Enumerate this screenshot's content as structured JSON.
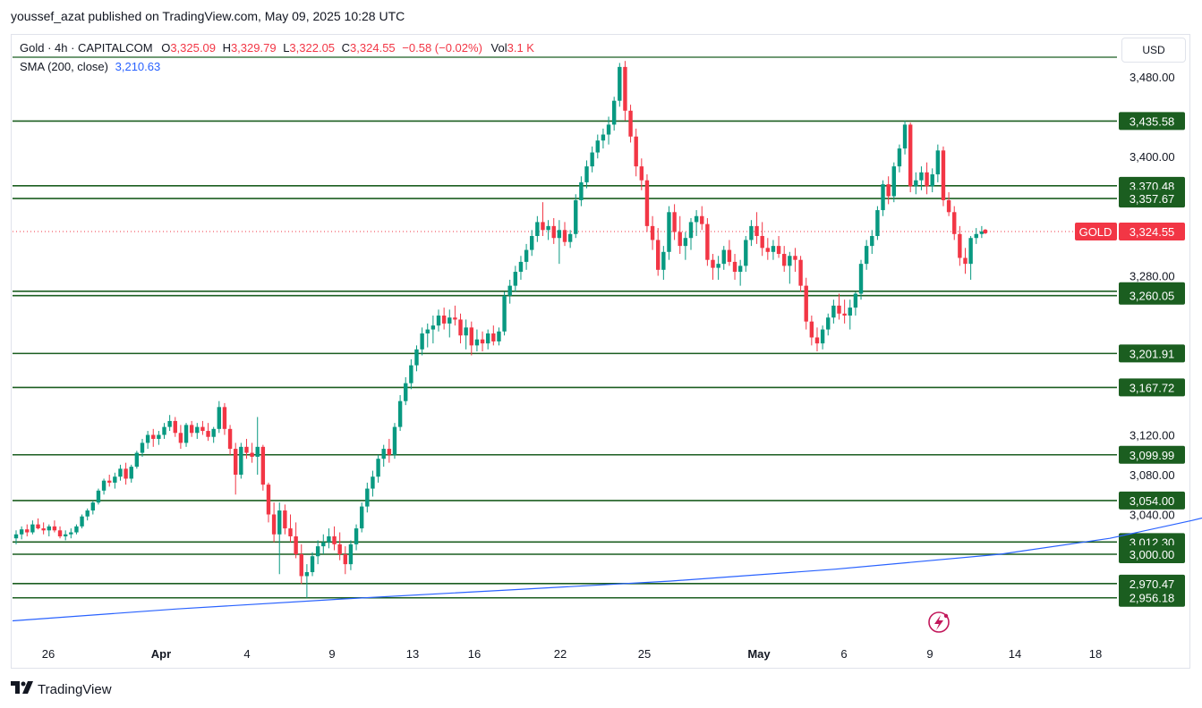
{
  "header": {
    "published": "youssef_azat published on TradingView.com, May 09, 2025 10:28 UTC"
  },
  "legend": {
    "symbol": "Gold · 4h · CAPITALCOM",
    "o_label": "O",
    "o_value": "3,325.09",
    "h_label": "H",
    "h_value": "3,329.79",
    "l_label": "L",
    "l_value": "3,322.05",
    "c_label": "C",
    "c_value": "3,324.55",
    "change": "−0.58 (−0.02%)",
    "vol_label": "Vol",
    "vol_value": "3.1 K",
    "sma_label": "SMA (200, close)",
    "sma_value": "3,210.63"
  },
  "currency_button": "USD",
  "footer": {
    "brand": "TradingView"
  },
  "colors": {
    "up": "#089981",
    "down": "#f23645",
    "sma": "#2962ff",
    "level_line": "#1b5e20",
    "level_tag": "#1b5e20",
    "price_tag": "#f23645"
  },
  "chart_data": {
    "type": "candlestick",
    "symbol": "Gold",
    "timeframe": "4h",
    "y_ticks": [
      "3,480.00",
      "3,400.00",
      "3,280.00",
      "3,120.00",
      "3,080.00",
      "3,040.00"
    ],
    "y_tick_values": [
      3480,
      3400,
      3280,
      3120,
      3080,
      3040
    ],
    "x_ticks": [
      "26",
      "Apr",
      "4",
      "9",
      "13",
      "16",
      "22",
      "25",
      "May",
      "6",
      "9",
      "14",
      "18"
    ],
    "horizontal_levels": [
      {
        "label": "3,435.58",
        "value": 3435.58
      },
      {
        "label": "3,370.48",
        "value": 3370.48
      },
      {
        "label": "3,357.67",
        "value": 3357.67
      },
      {
        "label": "3,264.44",
        "value": 3264.44
      },
      {
        "label": "3,260.05",
        "value": 3260.05
      },
      {
        "label": "3,201.91",
        "value": 3201.91
      },
      {
        "label": "3,167.72",
        "value": 3167.72
      },
      {
        "label": "3,099.99",
        "value": 3099.99
      },
      {
        "label": "3,054.00",
        "value": 3054.0
      },
      {
        "label": "3,012.30",
        "value": 3012.3
      },
      {
        "label": "3,000.00",
        "value": 3000.0
      },
      {
        "label": "2,970.47",
        "value": 2970.47
      },
      {
        "label": "2,956.18",
        "value": 2956.18
      }
    ],
    "last_price": {
      "name": "GOLD",
      "label": "3,324.55",
      "value": 3324.55
    },
    "sma_200": [
      [
        0,
        2933
      ],
      [
        30,
        2945
      ],
      [
        60,
        2955
      ],
      [
        90,
        2964
      ],
      [
        120,
        2973
      ],
      [
        150,
        2985
      ],
      [
        180,
        3000
      ],
      [
        200,
        3016
      ],
      [
        215,
        3034
      ],
      [
        230,
        3054
      ],
      [
        245,
        3073
      ],
      [
        260,
        3093
      ],
      [
        275,
        3110
      ],
      [
        290,
        3125
      ],
      [
        305,
        3138
      ],
      [
        320,
        3150
      ],
      [
        340,
        3162
      ],
      [
        360,
        3172
      ],
      [
        380,
        3183
      ],
      [
        396,
        3193
      ],
      [
        410,
        3203
      ],
      [
        415,
        3210
      ]
    ],
    "candles": [
      [
        3016,
        3024,
        3010,
        3020
      ],
      [
        3020,
        3028,
        3015,
        3025
      ],
      [
        3025,
        3030,
        3018,
        3022
      ],
      [
        3022,
        3034,
        3020,
        3030
      ],
      [
        3030,
        3036,
        3025,
        3026
      ],
      [
        3026,
        3032,
        3020,
        3024
      ],
      [
        3024,
        3030,
        3018,
        3028
      ],
      [
        3028,
        3034,
        3022,
        3024
      ],
      [
        3024,
        3028,
        3016,
        3018
      ],
      [
        3018,
        3024,
        3014,
        3020
      ],
      [
        3020,
        3026,
        3016,
        3022
      ],
      [
        3022,
        3030,
        3020,
        3028
      ],
      [
        3028,
        3040,
        3026,
        3038
      ],
      [
        3038,
        3046,
        3034,
        3044
      ],
      [
        3044,
        3054,
        3040,
        3052
      ],
      [
        3052,
        3066,
        3050,
        3064
      ],
      [
        3064,
        3076,
        3060,
        3074
      ],
      [
        3074,
        3080,
        3068,
        3072
      ],
      [
        3072,
        3082,
        3066,
        3078
      ],
      [
        3078,
        3090,
        3074,
        3086
      ],
      [
        3086,
        3092,
        3070,
        3076
      ],
      [
        3076,
        3090,
        3072,
        3088
      ],
      [
        3088,
        3104,
        3086,
        3102
      ],
      [
        3102,
        3116,
        3098,
        3112
      ],
      [
        3112,
        3124,
        3106,
        3120
      ],
      [
        3120,
        3126,
        3108,
        3116
      ],
      [
        3116,
        3124,
        3110,
        3120
      ],
      [
        3120,
        3132,
        3116,
        3128
      ],
      [
        3128,
        3140,
        3124,
        3134
      ],
      [
        3134,
        3138,
        3118,
        3122
      ],
      [
        3122,
        3130,
        3106,
        3112
      ],
      [
        3112,
        3132,
        3108,
        3130
      ],
      [
        3130,
        3134,
        3118,
        3122
      ],
      [
        3122,
        3132,
        3116,
        3128
      ],
      [
        3128,
        3134,
        3120,
        3124
      ],
      [
        3124,
        3132,
        3114,
        3118
      ],
      [
        3118,
        3128,
        3112,
        3126
      ],
      [
        3126,
        3154,
        3122,
        3148
      ],
      [
        3148,
        3152,
        3120,
        3126
      ],
      [
        3126,
        3130,
        3100,
        3106
      ],
      [
        3106,
        3112,
        3060,
        3080
      ],
      [
        3080,
        3112,
        3076,
        3108
      ],
      [
        3108,
        3116,
        3096,
        3102
      ],
      [
        3102,
        3112,
        3092,
        3098
      ],
      [
        3098,
        3138,
        3080,
        3108
      ],
      [
        3108,
        3110,
        3064,
        3070
      ],
      [
        3070,
        3072,
        3032,
        3040
      ],
      [
        3040,
        3052,
        3012,
        3020
      ],
      [
        3020,
        3052,
        2980,
        3044
      ],
      [
        3044,
        3050,
        3020,
        3026
      ],
      [
        3026,
        3040,
        3012,
        3018
      ],
      [
        3018,
        3032,
        2996,
        3000
      ],
      [
        3000,
        3010,
        2970,
        2978
      ],
      [
        2978,
        2990,
        2956,
        2982
      ],
      [
        2982,
        3002,
        2978,
        2998
      ],
      [
        2998,
        3014,
        2990,
        3008
      ],
      [
        3008,
        3020,
        3000,
        3012
      ],
      [
        3012,
        3026,
        3006,
        3018
      ],
      [
        3018,
        3028,
        3004,
        3010
      ],
      [
        3010,
        3022,
        2994,
        3000
      ],
      [
        3000,
        3008,
        2980,
        2990
      ],
      [
        2990,
        3014,
        2984,
        3010
      ],
      [
        3010,
        3030,
        3004,
        3026
      ],
      [
        3026,
        3052,
        3022,
        3048
      ],
      [
        3048,
        3072,
        3042,
        3066
      ],
      [
        3066,
        3084,
        3058,
        3078
      ],
      [
        3078,
        3100,
        3072,
        3096
      ],
      [
        3096,
        3110,
        3088,
        3106
      ],
      [
        3106,
        3116,
        3092,
        3100
      ],
      [
        3100,
        3132,
        3096,
        3128
      ],
      [
        3128,
        3160,
        3124,
        3154
      ],
      [
        3154,
        3178,
        3150,
        3172
      ],
      [
        3172,
        3196,
        3166,
        3190
      ],
      [
        3190,
        3210,
        3184,
        3206
      ],
      [
        3206,
        3228,
        3200,
        3222
      ],
      [
        3222,
        3232,
        3208,
        3226
      ],
      [
        3226,
        3240,
        3212,
        3230
      ],
      [
        3230,
        3246,
        3224,
        3240
      ],
      [
        3240,
        3248,
        3226,
        3232
      ],
      [
        3232,
        3246,
        3218,
        3238
      ],
      [
        3238,
        3250,
        3230,
        3236
      ],
      [
        3236,
        3242,
        3212,
        3220
      ],
      [
        3220,
        3236,
        3206,
        3228
      ],
      [
        3228,
        3234,
        3200,
        3210
      ],
      [
        3210,
        3226,
        3204,
        3216
      ],
      [
        3216,
        3224,
        3204,
        3212
      ],
      [
        3212,
        3226,
        3206,
        3222
      ],
      [
        3222,
        3230,
        3210,
        3214
      ],
      [
        3214,
        3228,
        3210,
        3224
      ],
      [
        3224,
        3264,
        3220,
        3260
      ],
      [
        3260,
        3276,
        3252,
        3270
      ],
      [
        3270,
        3290,
        3264,
        3284
      ],
      [
        3284,
        3300,
        3276,
        3294
      ],
      [
        3294,
        3312,
        3286,
        3306
      ],
      [
        3306,
        3326,
        3300,
        3320
      ],
      [
        3320,
        3340,
        3314,
        3334
      ],
      [
        3334,
        3354,
        3320,
        3326
      ],
      [
        3326,
        3336,
        3316,
        3330
      ],
      [
        3330,
        3338,
        3312,
        3318
      ],
      [
        3318,
        3336,
        3292,
        3326
      ],
      [
        3326,
        3334,
        3310,
        3314
      ],
      [
        3314,
        3326,
        3308,
        3322
      ],
      [
        3322,
        3362,
        3318,
        3356
      ],
      [
        3356,
        3380,
        3350,
        3374
      ],
      [
        3374,
        3396,
        3368,
        3390
      ],
      [
        3390,
        3410,
        3384,
        3404
      ],
      [
        3404,
        3422,
        3398,
        3416
      ],
      [
        3416,
        3428,
        3408,
        3422
      ],
      [
        3422,
        3440,
        3412,
        3432
      ],
      [
        3432,
        3460,
        3426,
        3456
      ],
      [
        3456,
        3494,
        3450,
        3490
      ],
      [
        3490,
        3496,
        3436,
        3446
      ],
      [
        3446,
        3452,
        3414,
        3420
      ],
      [
        3420,
        3428,
        3380,
        3390
      ],
      [
        3390,
        3398,
        3366,
        3376
      ],
      [
        3376,
        3382,
        3324,
        3330
      ],
      [
        3330,
        3340,
        3306,
        3316
      ],
      [
        3316,
        3328,
        3280,
        3286
      ],
      [
        3286,
        3310,
        3276,
        3304
      ],
      [
        3304,
        3350,
        3296,
        3344
      ],
      [
        3344,
        3352,
        3316,
        3324
      ],
      [
        3324,
        3340,
        3302,
        3310
      ],
      [
        3310,
        3324,
        3296,
        3318
      ],
      [
        3318,
        3338,
        3306,
        3334
      ],
      [
        3334,
        3346,
        3320,
        3340
      ],
      [
        3340,
        3350,
        3326,
        3332
      ],
      [
        3332,
        3338,
        3290,
        3296
      ],
      [
        3296,
        3302,
        3276,
        3288
      ],
      [
        3288,
        3300,
        3276,
        3292
      ],
      [
        3292,
        3310,
        3286,
        3306
      ],
      [
        3306,
        3316,
        3290,
        3294
      ],
      [
        3294,
        3302,
        3276,
        3284
      ],
      [
        3284,
        3296,
        3270,
        3290
      ],
      [
        3290,
        3320,
        3284,
        3316
      ],
      [
        3316,
        3336,
        3310,
        3330
      ],
      [
        3330,
        3344,
        3312,
        3320
      ],
      [
        3320,
        3334,
        3300,
        3308
      ],
      [
        3308,
        3318,
        3296,
        3304
      ],
      [
        3304,
        3316,
        3296,
        3310
      ],
      [
        3310,
        3320,
        3298,
        3302
      ],
      [
        3302,
        3310,
        3284,
        3290
      ],
      [
        3290,
        3304,
        3272,
        3300
      ],
      [
        3300,
        3308,
        3284,
        3296
      ],
      [
        3296,
        3300,
        3264,
        3270
      ],
      [
        3270,
        3278,
        3226,
        3234
      ],
      [
        3234,
        3240,
        3210,
        3218
      ],
      [
        3218,
        3228,
        3204,
        3212
      ],
      [
        3212,
        3230,
        3206,
        3226
      ],
      [
        3226,
        3242,
        3220,
        3238
      ],
      [
        3238,
        3256,
        3232,
        3250
      ],
      [
        3250,
        3262,
        3236,
        3242
      ],
      [
        3242,
        3256,
        3232,
        3240
      ],
      [
        3240,
        3256,
        3226,
        3248
      ],
      [
        3248,
        3264,
        3240,
        3262
      ],
      [
        3262,
        3296,
        3256,
        3292
      ],
      [
        3292,
        3316,
        3286,
        3310
      ],
      [
        3310,
        3326,
        3302,
        3320
      ],
      [
        3320,
        3350,
        3316,
        3346
      ],
      [
        3346,
        3376,
        3340,
        3372
      ],
      [
        3372,
        3380,
        3352,
        3360
      ],
      [
        3360,
        3394,
        3354,
        3390
      ],
      [
        3390,
        3412,
        3384,
        3408
      ],
      [
        3408,
        3436,
        3402,
        3432
      ],
      [
        3432,
        3434,
        3364,
        3370
      ],
      [
        3370,
        3384,
        3362,
        3376
      ],
      [
        3376,
        3390,
        3366,
        3384
      ],
      [
        3384,
        3394,
        3362,
        3370
      ],
      [
        3370,
        3388,
        3364,
        3382
      ],
      [
        3382,
        3412,
        3374,
        3406
      ],
      [
        3406,
        3410,
        3350,
        3356
      ],
      [
        3356,
        3364,
        3340,
        3344
      ],
      [
        3344,
        3350,
        3316,
        3322
      ],
      [
        3322,
        3330,
        3290,
        3298
      ],
      [
        3298,
        3308,
        3282,
        3292
      ],
      [
        3292,
        3320,
        3276,
        3318
      ],
      [
        3318,
        3328,
        3312,
        3322
      ],
      [
        3322,
        3330,
        3318,
        3324.55
      ]
    ]
  }
}
